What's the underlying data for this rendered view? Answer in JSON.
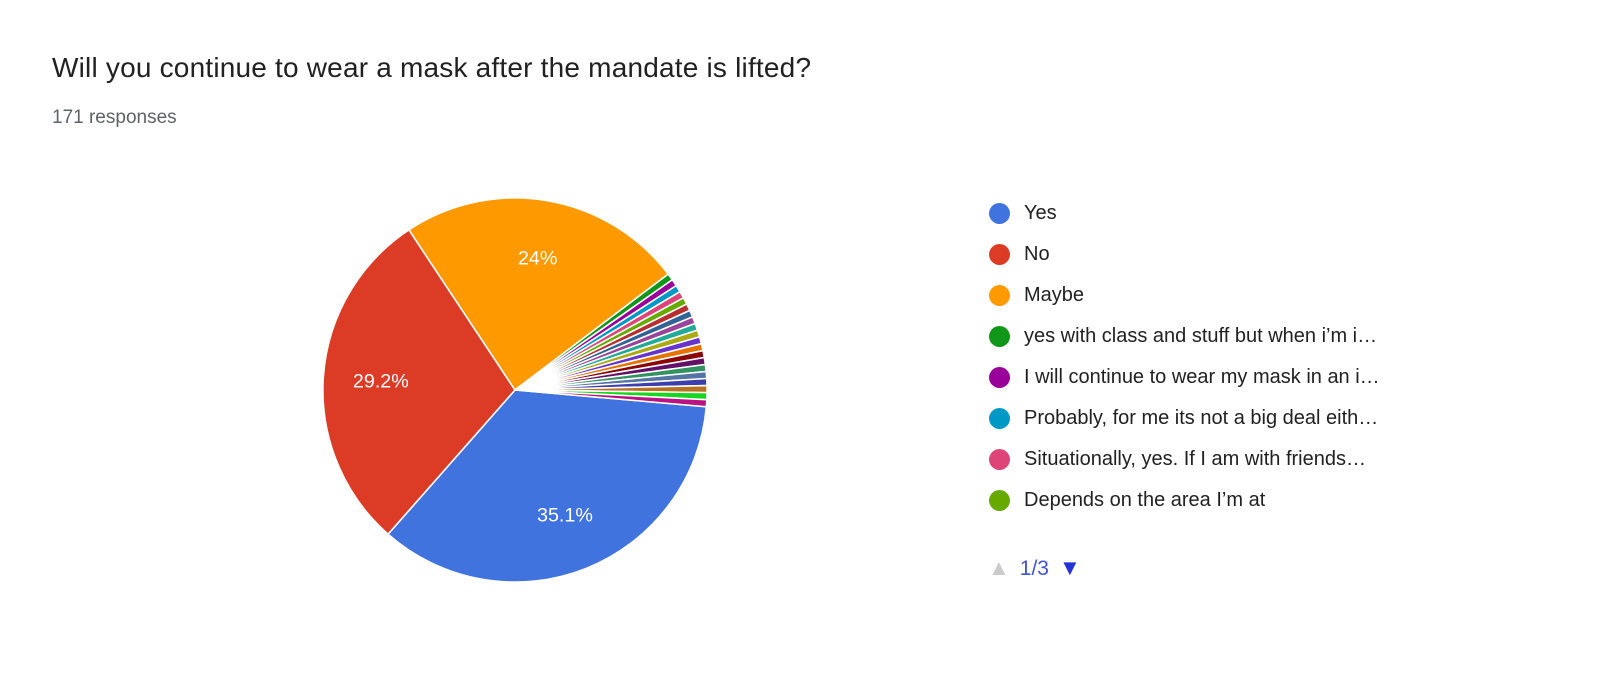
{
  "page": {
    "title": "Will you continue to wear a mask after the mandate is lifted?",
    "subtitle": "171 responses"
  },
  "chart_data": {
    "type": "pie",
    "title": "Will you continue to wear a mask after the mandate is lifted?",
    "subtitle": "171 responses",
    "total_responses": 171,
    "start_angle_deg": 95,
    "direction": "clockwise",
    "legend_position": "right",
    "labels_inside": true,
    "stroke_color": "#ffffff",
    "slices": [
      {
        "label": "Yes",
        "pct": 35.1,
        "color": "#4173DF",
        "data_label": "35.1%"
      },
      {
        "label": "No",
        "pct": 29.2,
        "color": "#DC3B26",
        "data_label": "29.2%"
      },
      {
        "label": "Maybe",
        "pct": 24.0,
        "color": "#FF9900",
        "data_label": "24%"
      },
      {
        "label": "yes with class and stuff but when i’m i…",
        "pct": 0.585,
        "color": "#109618",
        "data_label": ""
      },
      {
        "label": "I will continue to wear my mask in an i…",
        "pct": 0.585,
        "color": "#990099",
        "data_label": ""
      },
      {
        "label": "Probably, for me its not a big deal eith…",
        "pct": 0.585,
        "color": "#0099C6",
        "data_label": ""
      },
      {
        "label": "Situationally, yes. If I am with friends…",
        "pct": 0.585,
        "color": "#DD4477",
        "data_label": ""
      },
      {
        "label": "Depends on the area I’m at",
        "pct": 0.585,
        "color": "#66AA00",
        "data_label": ""
      },
      {
        "label": "",
        "pct": 0.585,
        "color": "#B82E2E",
        "data_label": ""
      },
      {
        "label": "",
        "pct": 0.585,
        "color": "#316395",
        "data_label": ""
      },
      {
        "label": "",
        "pct": 0.585,
        "color": "#994499",
        "data_label": ""
      },
      {
        "label": "",
        "pct": 0.585,
        "color": "#22AA99",
        "data_label": ""
      },
      {
        "label": "",
        "pct": 0.585,
        "color": "#AAAA11",
        "data_label": ""
      },
      {
        "label": "",
        "pct": 0.585,
        "color": "#6633CC",
        "data_label": ""
      },
      {
        "label": "",
        "pct": 0.585,
        "color": "#E67300",
        "data_label": ""
      },
      {
        "label": "",
        "pct": 0.585,
        "color": "#8B0707",
        "data_label": ""
      },
      {
        "label": "",
        "pct": 0.585,
        "color": "#651067",
        "data_label": ""
      },
      {
        "label": "",
        "pct": 0.585,
        "color": "#329262",
        "data_label": ""
      },
      {
        "label": "",
        "pct": 0.585,
        "color": "#5574A6",
        "data_label": ""
      },
      {
        "label": "",
        "pct": 0.585,
        "color": "#3B3EAC",
        "data_label": ""
      },
      {
        "label": "",
        "pct": 0.585,
        "color": "#B77322",
        "data_label": ""
      },
      {
        "label": "",
        "pct": 0.585,
        "color": "#16D620",
        "data_label": ""
      },
      {
        "label": "",
        "pct": 0.585,
        "color": "#B91383",
        "data_label": ""
      }
    ]
  },
  "legend": {
    "items": [
      {
        "label": "Yes",
        "color": "#4173DF"
      },
      {
        "label": "No",
        "color": "#DC3B26"
      },
      {
        "label": "Maybe",
        "color": "#FF9900"
      },
      {
        "label": "yes with class and stuff but when i’m i…",
        "color": "#109618"
      },
      {
        "label": "I will continue to wear my mask in an i…",
        "color": "#990099"
      },
      {
        "label": "Probably, for me its not a big deal eith…",
        "color": "#0099C6"
      },
      {
        "label": "Situationally, yes. If I am with friends…",
        "color": "#DD4477"
      },
      {
        "label": "Depends on the area I’m at",
        "color": "#66AA00"
      }
    ],
    "pagination": {
      "label": "1/3",
      "up_icon": "▲",
      "down_icon": "▼",
      "up_enabled": false,
      "down_enabled": true,
      "up_color": "#cbcbcb",
      "down_color": "#2433d6",
      "text_color": "#4153d9"
    }
  }
}
